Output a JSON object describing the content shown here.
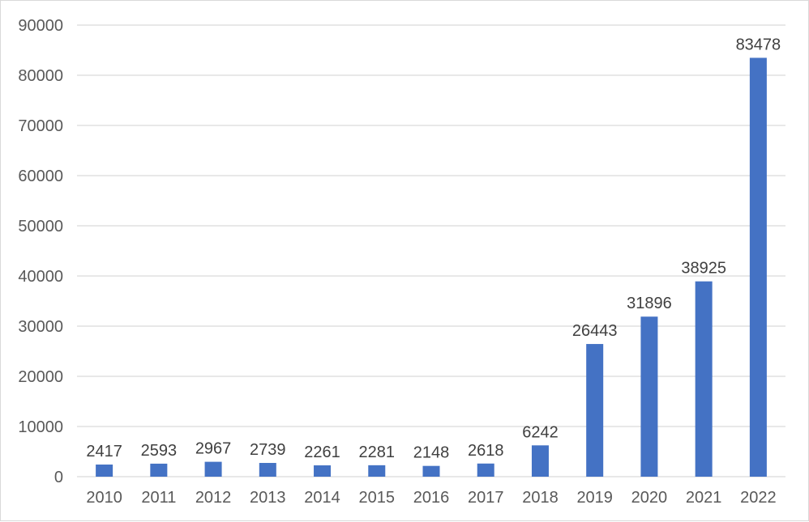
{
  "chart_data": {
    "type": "bar",
    "title": "",
    "xlabel": "",
    "ylabel": "",
    "categories": [
      "2010",
      "2011",
      "2012",
      "2013",
      "2014",
      "2015",
      "2016",
      "2017",
      "2018",
      "2019",
      "2020",
      "2021",
      "2022"
    ],
    "values": [
      2417,
      2593,
      2967,
      2739,
      2261,
      2281,
      2148,
      2618,
      6242,
      26443,
      31896,
      38925,
      83478
    ],
    "data_labels": [
      "2417",
      "2593",
      "2967",
      "2739",
      "2261",
      "2281",
      "2148",
      "2618",
      "6242",
      "26443",
      "31896",
      "38925",
      "83478"
    ],
    "ylim": [
      0,
      90000
    ],
    "yticks": [
      0,
      10000,
      20000,
      30000,
      40000,
      50000,
      60000,
      70000,
      80000,
      90000
    ],
    "ytick_labels": [
      "0",
      "10000",
      "20000",
      "30000",
      "40000",
      "50000",
      "60000",
      "70000",
      "80000",
      "90000"
    ],
    "grid": true,
    "legend": "none",
    "colors": {
      "bar": "#4472c4",
      "grid": "#d9d9d9",
      "tick_text": "#595959",
      "label_text": "#404040"
    }
  }
}
